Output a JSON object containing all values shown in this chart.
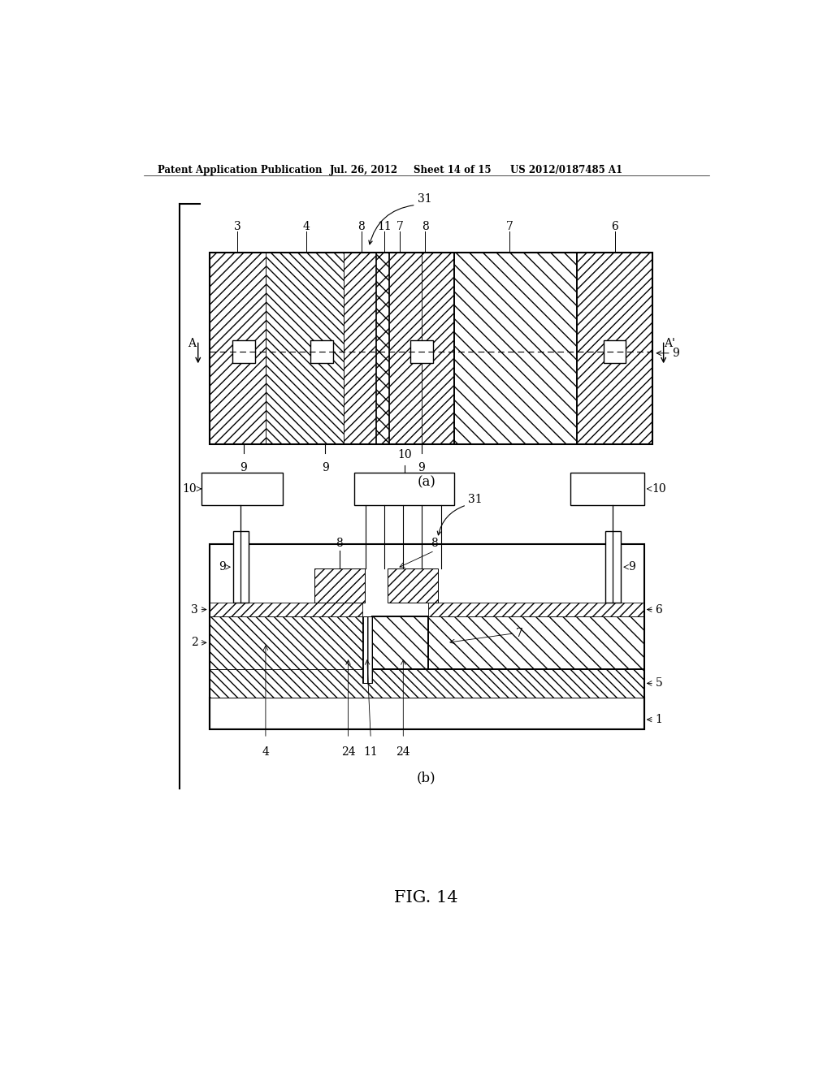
{
  "bg_color": "#ffffff",
  "header_text": "Patent Application Publication",
  "header_date": "Jul. 26, 2012",
  "header_sheet": "Sheet 14 of 15",
  "header_patent": "US 2012/0187485 A1",
  "fig_label": "FIG. 14",
  "label_a": "(a)",
  "label_b": "(b)"
}
